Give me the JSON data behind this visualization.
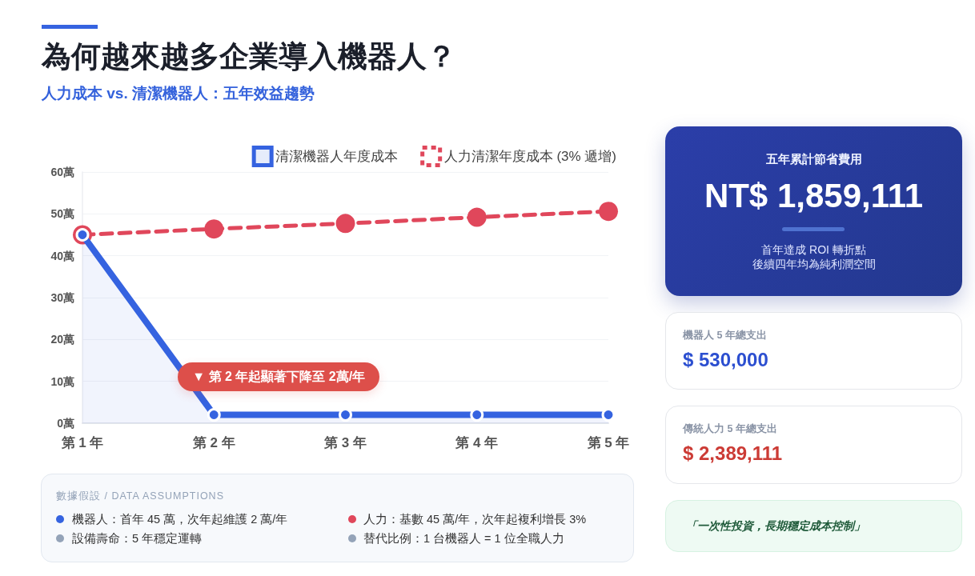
{
  "chart_data": [
    {
      "type": "line",
      "title": "為何越來越多企業導入機器人？",
      "subtitle": "人力成本 vs. 清潔機器人：五年效益趨勢",
      "categories": [
        "第 1 年",
        "第 2 年",
        "第 3 年",
        "第 4 年",
        "第 5 年"
      ],
      "series": [
        {
          "name": "清潔機器人年度成本",
          "type": "area",
          "color": "#3563e0",
          "values": [
            45,
            2,
            2,
            2,
            2
          ],
          "line_style": "solid"
        },
        {
          "name": "人力清潔年度成本 (3% 遞增)",
          "type": "line",
          "color": "#e0475b",
          "values": [
            45,
            46.4,
            47.7,
            49.2,
            50.6
          ],
          "line_style": "dashed"
        }
      ],
      "ylim": [
        0,
        60
      ],
      "yticks": [
        {
          "value": 0,
          "label": "0萬"
        },
        {
          "value": 10,
          "label": "10萬"
        },
        {
          "value": 20,
          "label": "20萬"
        },
        {
          "value": 30,
          "label": "30萬"
        },
        {
          "value": 40,
          "label": "40萬"
        },
        {
          "value": 50,
          "label": "50萬"
        },
        {
          "value": 60,
          "label": "60萬"
        }
      ],
      "grid": "y",
      "legend": "top right",
      "marker": "circle",
      "annotations": [
        {
          "text": "▼ 第 2 年起顯著下降至 2萬/年",
          "x": "第 2 年",
          "y": 2
        },
        "數據假設 / DATA ASSUMPTIONS",
        "機器人：首年 45 萬，次年起維護 2 萬/年",
        "人力：基數 45 萬/年，次年起複利增長 3%",
        "設備壽命：5 年穩定運轉",
        "替代比例：1 台機器人 = 1 位全職人力"
      ]
    },
    {
      "type": "other",
      "title": "五年累計節省費用",
      "annotations": [
        "NT$ 1,859,111",
        "首年達成 ROI 轉折點",
        "後續四年均為純利潤空間"
      ]
    },
    {
      "type": "other",
      "title": "機器人 5 年總支出",
      "annotations": [
        "$ 530,000"
      ]
    },
    {
      "type": "other",
      "title": "傳統人力 5 年總支出",
      "annotations": [
        "$ 2,389,111"
      ]
    },
    {
      "type": "other",
      "annotations": [
        "「一次性投資，長期穩定成本控制」"
      ]
    }
  ]
}
